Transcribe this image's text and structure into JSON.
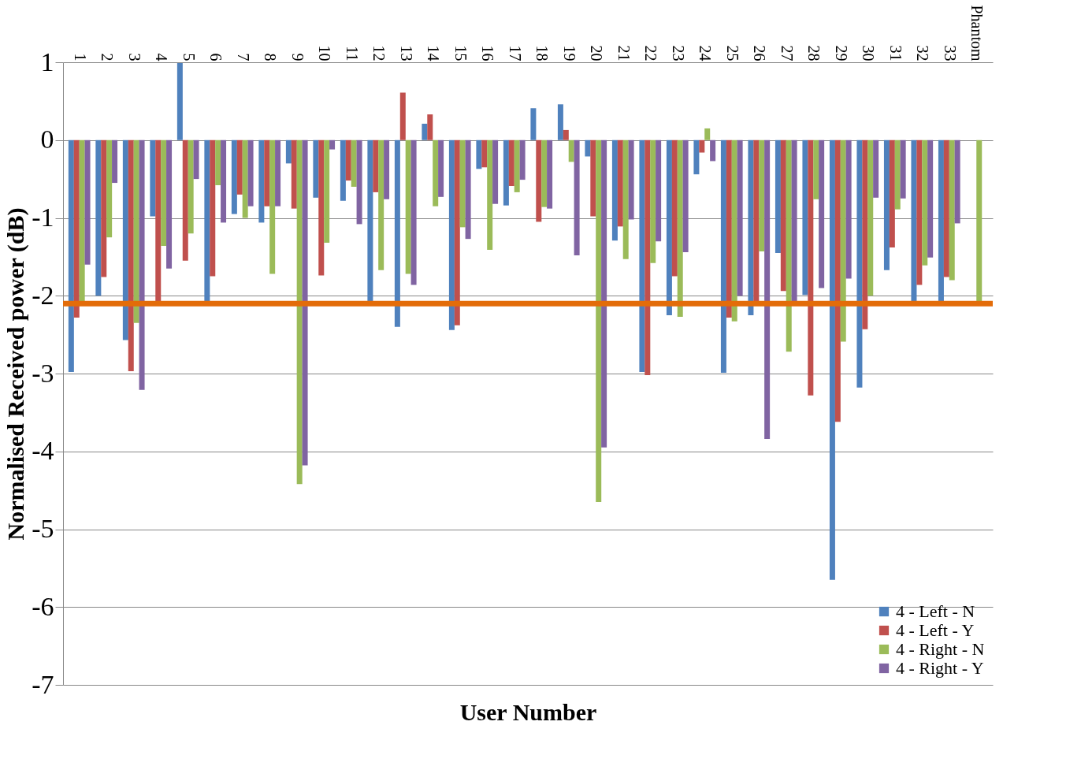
{
  "chart_data": {
    "type": "bar",
    "xlabel": "User Number",
    "ylabel": "Normalised Received power (dB)",
    "categories": [
      "1",
      "2",
      "3",
      "4",
      "5",
      "6",
      "7",
      "8",
      "9",
      "10",
      "11",
      "12",
      "13",
      "14",
      "15",
      "16",
      "17",
      "18",
      "19",
      "20",
      "21",
      "22",
      "23",
      "24",
      "25",
      "26",
      "27",
      "28",
      "29",
      "30",
      "31",
      "32",
      "33",
      "Phantom"
    ],
    "series": [
      {
        "name": "4 - Left - N",
        "color": "#4f81bd",
        "values": [
          -2.98,
          -2.0,
          -2.57,
          -0.98,
          0.99,
          -2.07,
          -0.95,
          -1.06,
          -0.3,
          -0.74,
          -0.78,
          -2.07,
          -2.4,
          0.21,
          -2.44,
          -0.37,
          -0.84,
          0.41,
          0.46,
          -0.21,
          -1.29,
          -2.98,
          -2.25,
          -0.44,
          -2.99,
          -2.25,
          -1.45,
          -1.99,
          -5.65,
          -3.18,
          -1.67,
          -2.07,
          -2.07,
          null
        ]
      },
      {
        "name": "4 - Left - Y",
        "color": "#c0504d",
        "values": [
          -2.28,
          -1.76,
          -2.97,
          -2.07,
          -1.55,
          -1.75,
          -0.7,
          -0.85,
          -0.88,
          -1.74,
          -0.52,
          -0.67,
          0.61,
          0.33,
          -2.38,
          -0.35,
          -0.59,
          -1.05,
          0.13,
          -0.98,
          -1.11,
          -3.02,
          -1.75,
          -0.16,
          -2.28,
          -2.07,
          -1.94,
          -3.28,
          -3.62,
          -2.43,
          -1.38,
          -1.86,
          -1.76,
          null
        ]
      },
      {
        "name": "4 - Right - N",
        "color": "#9bbb59",
        "values": [
          -2.08,
          -1.25,
          -2.35,
          -1.36,
          -1.2,
          -0.58,
          -1.0,
          -1.72,
          -4.42,
          -1.32,
          -0.6,
          -1.67,
          -1.72,
          -0.85,
          -1.12,
          -1.41,
          -0.67,
          -0.86,
          -0.28,
          -4.65,
          -1.53,
          -1.58,
          -2.27,
          0.15,
          -2.33,
          -1.43,
          -2.72,
          -0.76,
          -2.59,
          -2.0,
          -0.89,
          -1.61,
          -1.8,
          -2.07
        ]
      },
      {
        "name": "4 - Right - Y",
        "color": "#8064a2",
        "values": [
          -1.6,
          -0.55,
          -3.21,
          -1.65,
          -0.5,
          -1.06,
          -0.85,
          -0.85,
          -4.18,
          -0.12,
          -1.08,
          -0.76,
          -1.86,
          -0.73,
          -1.27,
          -0.82,
          -0.51,
          -0.88,
          -1.48,
          -3.95,
          -1.02,
          -1.3,
          -1.44,
          -0.27,
          -2.0,
          -3.84,
          -2.07,
          -1.9,
          -1.78,
          -0.74,
          -0.75,
          -1.51,
          -1.07,
          null
        ]
      }
    ],
    "ylim": [
      -7,
      1
    ],
    "yticks": [
      -7,
      -6,
      -5,
      -4,
      -3,
      -2,
      -1,
      0,
      1
    ],
    "grid": "y",
    "legend": "bottom right",
    "ref_lines": [
      {
        "axis": "y",
        "value": -2.1,
        "color": "#e36c09"
      }
    ]
  }
}
